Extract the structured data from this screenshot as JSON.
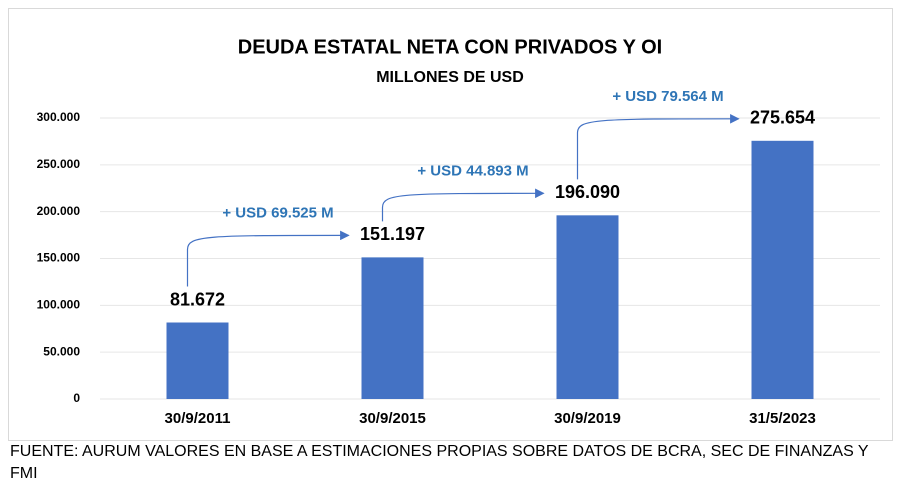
{
  "chart_data": {
    "type": "bar",
    "title": "DEUDA ESTATAL NETA CON PRIVADOS Y OI",
    "subtitle": "MILLONES DE USD",
    "categories": [
      "30/9/2011",
      "30/9/2015",
      "30/9/2019",
      "31/5/2023"
    ],
    "values": [
      81672,
      151197,
      196090,
      275654
    ],
    "value_labels": [
      "81.672",
      "151.197",
      "196.090",
      "275.654"
    ],
    "color": "#4472c4",
    "ylim": [
      0,
      300000
    ],
    "yticks": [
      0,
      {
        "value": 50000,
        "label": "50.000"
      },
      {
        "value": 100000,
        "label": "100.000"
      },
      {
        "value": 150000,
        "label": "150.000"
      },
      {
        "value": 200000,
        "label": "200.000"
      },
      {
        "value": 250000,
        "label": "250.000"
      },
      {
        "value": 300000,
        "label": "300.000"
      }
    ],
    "grid": true,
    "annotations": [
      "+ USD 69.525 M",
      "+ USD 44.893 M",
      "+ USD 79.564 M"
    ],
    "source": "FUENTE: AURUM VALORES EN BASE A ESTIMACIONES PROPIAS SOBRE DATOS DE BCRA, SEC DE FINANZAS Y FMI"
  }
}
